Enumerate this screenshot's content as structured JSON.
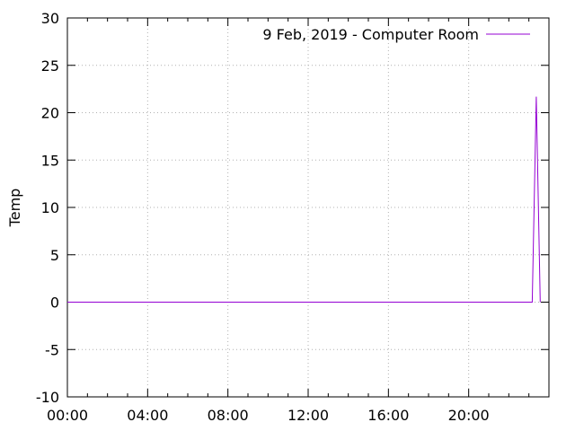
{
  "chart_data": {
    "type": "line",
    "title": "",
    "xlabel": "",
    "ylabel": "Temp",
    "xlim": [
      "00:00",
      "24:00"
    ],
    "ylim": [
      -10,
      30
    ],
    "x_ticks": [
      "00:00",
      "04:00",
      "08:00",
      "12:00",
      "16:00",
      "20:00"
    ],
    "y_ticks": [
      "-10",
      "-5",
      "0",
      "5",
      "10",
      "15",
      "20",
      "25",
      "30"
    ],
    "grid": true,
    "legend_position": "top-right",
    "series": [
      {
        "name": "9 Feb, 2019 - Computer Room",
        "color": "#9400d3",
        "x": [
          "00:00",
          "23:10",
          "23:22",
          "23:34"
        ],
        "y": [
          0,
          0,
          21.7,
          0
        ]
      }
    ]
  }
}
